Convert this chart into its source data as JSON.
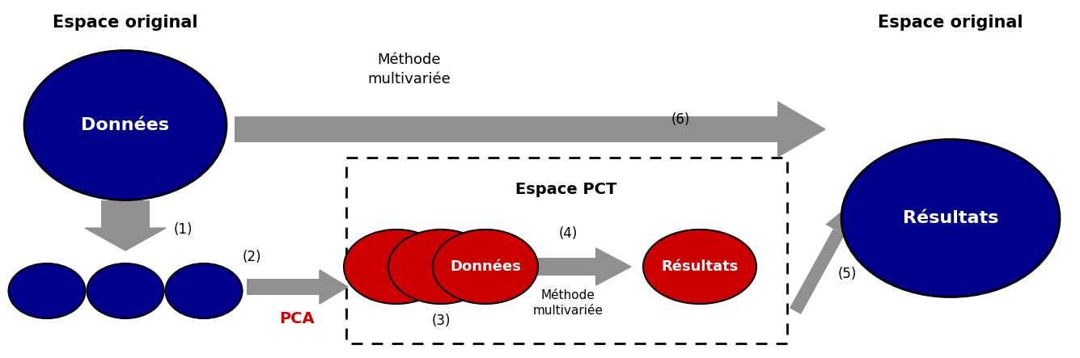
{
  "bg_color": "#ffffff",
  "dark_blue": "#00008B",
  "dark_red": "#CC0000",
  "gray_color": "#909090",
  "text_white": "#ffffff",
  "text_black": "#000000",
  "text_red": "#CC0000",
  "title_left": "Espace original",
  "title_right": "Espace original",
  "label_pct": "Espace PCT",
  "label_methode_top": "Méthode\nmultivariée",
  "label_methode_bottom": "Méthode\nmultivariée",
  "label_pca": "PCA",
  "label_donnees_blue": "Données",
  "label_resultats_blue": "Résultats",
  "label_donnees_red": "Données",
  "label_resultats_red": "Résultats",
  "num1": "(1)",
  "num2": "(2)",
  "num3": "(3)",
  "num4": "(4)",
  "num5": "(5)",
  "num6": "(6)"
}
